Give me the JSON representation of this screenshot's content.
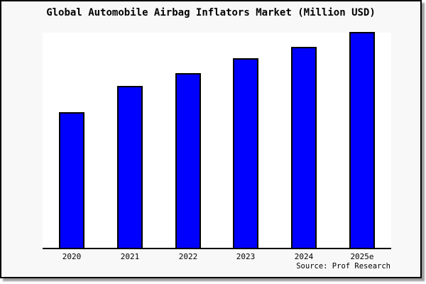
{
  "title": "Global Automobile Airbag Inflators Market (Million USD)",
  "source_label": "Source: Prof Research",
  "colors": {
    "bar_fill": "#0000FF",
    "bar_edge": "#000000",
    "frame_background": "#F8F8F8",
    "plot_background": "#FFFFFF",
    "frame_border": "#000000",
    "axis_line": "#000000",
    "title_text": "#000000",
    "shadow": "#9C9C9C"
  },
  "chart_data": {
    "type": "bar",
    "title": "Global Automobile Airbag Inflators Market (Million USD)",
    "categories": [
      "2020",
      "2021",
      "2022",
      "2023",
      "2024",
      "2025e"
    ],
    "values": [
      62,
      74,
      80,
      87,
      92,
      99
    ],
    "units": "relative bar height, % of plot area (no y-axis scale shown in chart)",
    "xlabel": "",
    "ylabel": "",
    "ylim": [
      0,
      100
    ],
    "grid": false,
    "legend": false,
    "annotations": [
      "Source: Prof Research"
    ]
  }
}
